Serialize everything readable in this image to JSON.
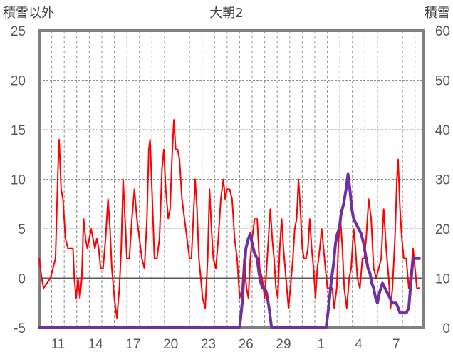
{
  "chart_data": {
    "type": "line",
    "title": "大朝2",
    "left_axis_label": "積雪以外",
    "right_axis_label": "積雪",
    "y_left": {
      "min": -5,
      "max": 25,
      "step": 5,
      "ticks": [
        "-5",
        "0",
        "5",
        "10",
        "15",
        "20",
        "25"
      ]
    },
    "y_right": {
      "min": 0,
      "max": 60,
      "step": 10,
      "ticks": [
        "0",
        "10",
        "20",
        "30",
        "40",
        "50",
        "60"
      ]
    },
    "x_range": [
      0,
      30.7
    ],
    "x_ticks": [
      {
        "x": 1.5,
        "label": "11"
      },
      {
        "x": 4.5,
        "label": "14"
      },
      {
        "x": 7.5,
        "label": "17"
      },
      {
        "x": 10.5,
        "label": "20"
      },
      {
        "x": 13.5,
        "label": "23"
      },
      {
        "x": 16.5,
        "label": "26"
      },
      {
        "x": 19.5,
        "label": "29"
      },
      {
        "x": 22.5,
        "label": "1"
      },
      {
        "x": 25.5,
        "label": "4"
      },
      {
        "x": 28.5,
        "label": "7"
      }
    ],
    "grid": {
      "horizontal": "dashed",
      "vertical_daily": "dashed",
      "zero_line": true
    },
    "series": [
      {
        "axis": "left",
        "color": "#ff0000",
        "points": [
          [
            0.0,
            2
          ],
          [
            0.2,
            0
          ],
          [
            0.35,
            -1
          ],
          [
            0.9,
            0
          ],
          [
            1.1,
            1
          ],
          [
            1.3,
            2
          ],
          [
            1.5,
            11
          ],
          [
            1.6,
            14
          ],
          [
            1.75,
            9
          ],
          [
            1.9,
            8
          ],
          [
            2.1,
            4
          ],
          [
            2.3,
            3
          ],
          [
            2.5,
            3
          ],
          [
            2.7,
            3
          ],
          [
            2.8,
            0
          ],
          [
            2.95,
            -2
          ],
          [
            3.1,
            0
          ],
          [
            3.25,
            -2
          ],
          [
            3.4,
            0
          ],
          [
            3.55,
            6
          ],
          [
            3.7,
            4
          ],
          [
            3.85,
            3
          ],
          [
            4.0,
            4
          ],
          [
            4.15,
            5
          ],
          [
            4.3,
            4
          ],
          [
            4.45,
            3
          ],
          [
            4.6,
            4
          ],
          [
            4.75,
            3
          ],
          [
            4.9,
            1
          ],
          [
            5.1,
            1
          ],
          [
            5.3,
            4
          ],
          [
            5.5,
            8
          ],
          [
            5.65,
            5
          ],
          [
            5.8,
            1
          ],
          [
            6.0,
            -2
          ],
          [
            6.2,
            -4
          ],
          [
            6.4,
            -1
          ],
          [
            6.55,
            3
          ],
          [
            6.7,
            10
          ],
          [
            6.85,
            6
          ],
          [
            7.0,
            2
          ],
          [
            7.2,
            2
          ],
          [
            7.4,
            6
          ],
          [
            7.6,
            9
          ],
          [
            7.8,
            6
          ],
          [
            8.0,
            4
          ],
          [
            8.2,
            2
          ],
          [
            8.4,
            1
          ],
          [
            8.6,
            6
          ],
          [
            8.75,
            13
          ],
          [
            8.85,
            14
          ],
          [
            9.0,
            9
          ],
          [
            9.2,
            2
          ],
          [
            9.4,
            2
          ],
          [
            9.6,
            4
          ],
          [
            9.8,
            11
          ],
          [
            9.95,
            13
          ],
          [
            10.1,
            9
          ],
          [
            10.3,
            6
          ],
          [
            10.45,
            7
          ],
          [
            10.6,
            12
          ],
          [
            10.75,
            16
          ],
          [
            10.9,
            13
          ],
          [
            11.05,
            13
          ],
          [
            11.2,
            12
          ],
          [
            11.4,
            8
          ],
          [
            11.6,
            6
          ],
          [
            11.8,
            4
          ],
          [
            12.0,
            2
          ],
          [
            12.15,
            2
          ],
          [
            12.3,
            6
          ],
          [
            12.45,
            10
          ],
          [
            12.6,
            7
          ],
          [
            12.75,
            2
          ],
          [
            12.9,
            0
          ],
          [
            13.05,
            -2
          ],
          [
            13.25,
            -3
          ],
          [
            13.45,
            2
          ],
          [
            13.6,
            9
          ],
          [
            13.75,
            5
          ],
          [
            13.9,
            2
          ],
          [
            14.1,
            1
          ],
          [
            14.3,
            4
          ],
          [
            14.5,
            8
          ],
          [
            14.7,
            10
          ],
          [
            14.85,
            8
          ],
          [
            15.0,
            9
          ],
          [
            15.2,
            9
          ],
          [
            15.4,
            8
          ],
          [
            15.6,
            4
          ],
          [
            15.8,
            2
          ],
          [
            16.0,
            -2
          ],
          [
            16.2,
            -1
          ],
          [
            16.35,
            2
          ],
          [
            16.55,
            -1
          ],
          [
            16.7,
            -2
          ],
          [
            16.85,
            2
          ],
          [
            17.0,
            4
          ],
          [
            17.2,
            6
          ],
          [
            17.4,
            6
          ],
          [
            17.6,
            1
          ],
          [
            17.8,
            0
          ],
          [
            18.0,
            -2
          ],
          [
            18.1,
            0
          ],
          [
            18.25,
            3
          ],
          [
            18.45,
            7
          ],
          [
            18.6,
            4
          ],
          [
            18.75,
            2
          ],
          [
            18.9,
            -1
          ],
          [
            19.05,
            -2
          ],
          [
            19.2,
            3
          ],
          [
            19.35,
            6
          ],
          [
            19.5,
            3
          ],
          [
            19.7,
            0
          ],
          [
            19.9,
            -3
          ],
          [
            20.05,
            -1
          ],
          [
            20.25,
            2
          ],
          [
            20.4,
            5
          ],
          [
            20.55,
            6
          ],
          [
            20.7,
            10
          ],
          [
            20.85,
            7
          ],
          [
            21.0,
            3
          ],
          [
            21.15,
            2
          ],
          [
            21.3,
            2
          ],
          [
            21.45,
            3
          ],
          [
            21.6,
            6
          ],
          [
            21.75,
            3
          ],
          [
            21.9,
            1
          ],
          [
            22.05,
            -2
          ],
          [
            22.2,
            1
          ],
          [
            22.4,
            3
          ],
          [
            22.55,
            5
          ],
          [
            22.7,
            3
          ],
          [
            22.85,
            1
          ],
          [
            23.0,
            -1
          ],
          [
            23.2,
            -1
          ],
          [
            23.4,
            -1
          ],
          [
            23.55,
            -3
          ],
          [
            23.75,
            -1
          ],
          [
            23.9,
            4
          ],
          [
            24.05,
            6
          ],
          [
            24.2,
            3
          ],
          [
            24.35,
            -1
          ],
          [
            24.55,
            -3
          ],
          [
            24.75,
            0
          ],
          [
            24.9,
            1
          ],
          [
            25.1,
            5
          ],
          [
            25.25,
            3
          ],
          [
            25.4,
            0
          ],
          [
            25.6,
            -1
          ],
          [
            25.8,
            2
          ],
          [
            25.95,
            2
          ],
          [
            26.1,
            4
          ],
          [
            26.3,
            8
          ],
          [
            26.5,
            6
          ],
          [
            26.7,
            1
          ],
          [
            26.9,
            0
          ],
          [
            27.1,
            1
          ],
          [
            27.3,
            2
          ],
          [
            27.5,
            7
          ],
          [
            27.7,
            3
          ],
          [
            27.9,
            0
          ],
          [
            28.05,
            -3
          ],
          [
            28.2,
            -1
          ],
          [
            28.4,
            4
          ],
          [
            28.55,
            10
          ],
          [
            28.65,
            12
          ],
          [
            28.8,
            7
          ],
          [
            28.95,
            4
          ],
          [
            29.1,
            2
          ],
          [
            29.3,
            2
          ],
          [
            29.5,
            -1
          ],
          [
            29.7,
            1
          ],
          [
            29.85,
            3
          ],
          [
            30.0,
            1
          ],
          [
            30.15,
            -1
          ],
          [
            30.35,
            -1
          ]
        ]
      },
      {
        "axis": "right",
        "color": "#7030a0",
        "points": [
          [
            0.0,
            0
          ],
          [
            16.0,
            0
          ],
          [
            16.2,
            5
          ],
          [
            16.5,
            16
          ],
          [
            16.7,
            18
          ],
          [
            16.85,
            19
          ],
          [
            17.0,
            17
          ],
          [
            17.2,
            15
          ],
          [
            17.4,
            14
          ],
          [
            17.55,
            11
          ],
          [
            17.7,
            9
          ],
          [
            17.85,
            8
          ],
          [
            18.0,
            8
          ],
          [
            18.15,
            7
          ],
          [
            18.35,
            4
          ],
          [
            18.55,
            0
          ],
          [
            22.9,
            0
          ],
          [
            23.1,
            4
          ],
          [
            23.3,
            9
          ],
          [
            23.5,
            13
          ],
          [
            23.65,
            17
          ],
          [
            23.8,
            19
          ],
          [
            23.95,
            20
          ],
          [
            24.1,
            23
          ],
          [
            24.3,
            25
          ],
          [
            24.5,
            28
          ],
          [
            24.65,
            31
          ],
          [
            24.8,
            28
          ],
          [
            24.95,
            24
          ],
          [
            25.1,
            22
          ],
          [
            25.3,
            21
          ],
          [
            25.5,
            20
          ],
          [
            25.7,
            19
          ],
          [
            25.9,
            17
          ],
          [
            26.1,
            14
          ],
          [
            26.25,
            12
          ],
          [
            26.4,
            11
          ],
          [
            26.55,
            9
          ],
          [
            26.7,
            8
          ],
          [
            26.85,
            6
          ],
          [
            27.0,
            5
          ],
          [
            27.15,
            7
          ],
          [
            27.4,
            9
          ],
          [
            27.6,
            8
          ],
          [
            27.8,
            7
          ],
          [
            28.0,
            6
          ],
          [
            28.2,
            5
          ],
          [
            28.5,
            5
          ],
          [
            28.8,
            3
          ],
          [
            29.3,
            3
          ],
          [
            29.5,
            4
          ],
          [
            29.7,
            10
          ],
          [
            29.85,
            14
          ],
          [
            30.35,
            14
          ]
        ]
      }
    ]
  }
}
